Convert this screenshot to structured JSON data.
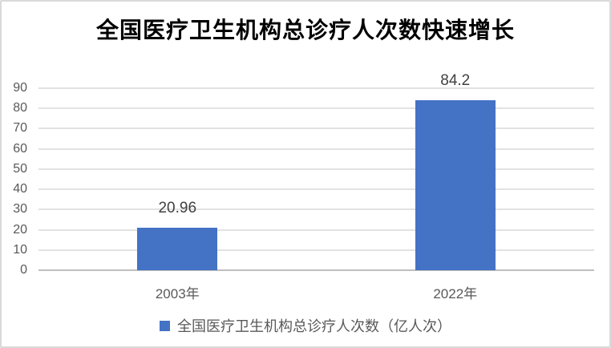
{
  "chart_data": {
    "type": "bar",
    "title": "全国医疗卫生机构总诊疗人次数快速增长",
    "categories": [
      "2003年",
      "2022年"
    ],
    "values": [
      20.96,
      84.2
    ],
    "data_labels": [
      "20.96",
      "84.2"
    ],
    "series_name": "全国医疗卫生机构总诊疗人次数（亿人次）",
    "xlabel": "",
    "ylabel": "",
    "ylim": [
      0,
      90
    ],
    "ytick_step": 10,
    "grid": true,
    "legend_position": "bottom",
    "bar_color": "#4472C4",
    "gridline_color": "#e2e2e2",
    "axis_line_color": "#bfbfbf",
    "axis_label_color": "#595959",
    "data_label_color": "#404040",
    "title_color": "#000000"
  }
}
